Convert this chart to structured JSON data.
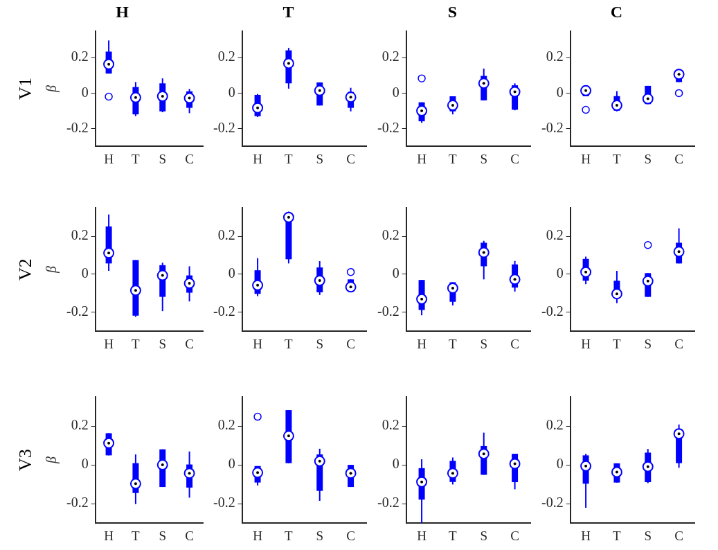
{
  "chart_data": [
    {
      "type": "box",
      "title": "H",
      "ylabel": "β",
      "annotations": [
        "V1"
      ],
      "categories": [
        "H",
        "T",
        "S",
        "C"
      ],
      "color": "#0000ff",
      "ylim": [
        -0.3,
        0.35
      ],
      "yticks": [
        -0.2,
        0,
        0.2
      ],
      "grid": false,
      "boxes": [
        {
          "low": 0.11,
          "q1": 0.11,
          "median": 0.163,
          "q3": 0.234,
          "high": 0.297,
          "outliers": [
            -0.02
          ]
        },
        {
          "low": -0.13,
          "q1": -0.12,
          "median": -0.025,
          "q3": 0.034,
          "high": 0.062
        },
        {
          "low": -0.108,
          "q1": -0.103,
          "median": -0.018,
          "q3": 0.055,
          "high": 0.083
        },
        {
          "low": -0.113,
          "q1": -0.083,
          "median": -0.028,
          "q3": 0.01,
          "high": 0.023
        }
      ]
    },
    {
      "type": "box",
      "title": "T",
      "categories": [
        "H",
        "T",
        "S",
        "C"
      ],
      "color": "#0000ff",
      "ylim": [
        -0.3,
        0.35
      ],
      "yticks": [
        -0.2,
        0,
        0.2
      ],
      "grid": false,
      "boxes": [
        {
          "low": -0.135,
          "q1": -0.13,
          "median": -0.083,
          "q3": -0.01,
          "high": -0.005
        },
        {
          "low": 0.025,
          "q1": 0.055,
          "median": 0.168,
          "q3": 0.241,
          "high": 0.255
        },
        {
          "low": -0.07,
          "q1": -0.07,
          "median": 0.014,
          "q3": 0.06,
          "high": 0.06
        },
        {
          "low": -0.103,
          "q1": -0.083,
          "median": -0.023,
          "q3": 0.007,
          "high": 0.03
        }
      ]
    },
    {
      "type": "box",
      "title": "S",
      "categories": [
        "H",
        "T",
        "S",
        "C"
      ],
      "color": "#0000ff",
      "ylim": [
        -0.3,
        0.35
      ],
      "yticks": [
        -0.2,
        0,
        0.2
      ],
      "grid": false,
      "boxes": [
        {
          "low": -0.168,
          "q1": -0.159,
          "median": -0.1,
          "q3": -0.052,
          "high": -0.052,
          "outliers": [
            0.083
          ]
        },
        {
          "low": -0.12,
          "q1": -0.103,
          "median": -0.069,
          "q3": -0.018,
          "high": -0.018
        },
        {
          "low": -0.041,
          "q1": -0.041,
          "median": 0.055,
          "q3": 0.097,
          "high": 0.138
        },
        {
          "low": -0.097,
          "q1": -0.094,
          "median": 0.007,
          "q3": 0.044,
          "high": 0.055
        }
      ]
    },
    {
      "type": "box",
      "title": "C",
      "categories": [
        "H",
        "T",
        "S",
        "C"
      ],
      "color": "#0000ff",
      "ylim": [
        -0.3,
        0.35
      ],
      "yticks": [
        -0.2,
        0,
        0.2
      ],
      "grid": false,
      "boxes": [
        {
          "low": -0.018,
          "q1": -0.018,
          "median": 0.014,
          "q3": 0.041,
          "high": 0.041,
          "outliers": [
            -0.094
          ]
        },
        {
          "low": -0.103,
          "q1": -0.099,
          "median": -0.069,
          "q3": -0.017,
          "high": 0.011
        },
        {
          "low": -0.062,
          "q1": -0.062,
          "median": -0.032,
          "q3": 0.041,
          "high": 0.041
        },
        {
          "low": 0.062,
          "q1": 0.062,
          "median": 0.106,
          "q3": 0.124,
          "high": 0.131,
          "outliers": [
            0
          ]
        }
      ]
    },
    {
      "type": "box",
      "ylabel": "β",
      "annotations": [
        "V2"
      ],
      "categories": [
        "H",
        "T",
        "S",
        "C"
      ],
      "color": "#0000ff",
      "ylim": [
        -0.3,
        0.35
      ],
      "yticks": [
        -0.2,
        0,
        0.2
      ],
      "grid": false,
      "boxes": [
        {
          "low": 0.018,
          "q1": 0.057,
          "median": 0.112,
          "q3": 0.252,
          "high": 0.315
        },
        {
          "low": -0.224,
          "q1": -0.218,
          "median": -0.085,
          "q3": 0.075,
          "high": 0.075
        },
        {
          "low": -0.194,
          "q1": -0.119,
          "median": -0.006,
          "q3": 0.048,
          "high": 0.061
        },
        {
          "low": -0.143,
          "q1": -0.097,
          "median": -0.048,
          "q3": -0.006,
          "high": 0.042
        }
      ]
    },
    {
      "type": "box",
      "categories": [
        "H",
        "T",
        "S",
        "C"
      ],
      "color": "#0000ff",
      "ylim": [
        -0.3,
        0.35
      ],
      "yticks": [
        -0.2,
        0,
        0.2
      ],
      "grid": false,
      "boxes": [
        {
          "low": -0.115,
          "q1": -0.103,
          "median": -0.058,
          "q3": 0.021,
          "high": 0.085
        },
        {
          "low": 0.057,
          "q1": 0.079,
          "median": 0.3,
          "q3": 0.31,
          "high": 0.33
        },
        {
          "low": -0.109,
          "q1": -0.095,
          "median": -0.033,
          "q3": 0.036,
          "high": 0.069
        },
        {
          "low": -0.08,
          "q1": -0.08,
          "median": -0.067,
          "q3": -0.027,
          "high": -0.027,
          "outliers": [
            0.012
          ]
        }
      ]
    },
    {
      "type": "box",
      "categories": [
        "H",
        "T",
        "S",
        "C"
      ],
      "color": "#0000ff",
      "ylim": [
        -0.3,
        0.35
      ],
      "yticks": [
        -0.2,
        0,
        0.2
      ],
      "grid": false,
      "boxes": [
        {
          "low": -0.216,
          "q1": -0.188,
          "median": -0.131,
          "q3": -0.03,
          "high": -0.03
        },
        {
          "low": -0.164,
          "q1": -0.145,
          "median": -0.073,
          "q3": -0.042,
          "high": -0.042
        },
        {
          "low": -0.027,
          "q1": 0.042,
          "median": 0.115,
          "q3": 0.166,
          "high": 0.176
        },
        {
          "low": -0.091,
          "q1": -0.07,
          "median": -0.027,
          "q3": 0.052,
          "high": 0.07
        }
      ]
    },
    {
      "type": "box",
      "categories": [
        "H",
        "T",
        "S",
        "C"
      ],
      "color": "#0000ff",
      "ylim": [
        -0.3,
        0.35
      ],
      "yticks": [
        -0.2,
        0,
        0.2
      ],
      "grid": false,
      "boxes": [
        {
          "low": -0.052,
          "q1": -0.034,
          "median": 0.012,
          "q3": 0.081,
          "high": 0.093
        },
        {
          "low": -0.152,
          "q1": -0.121,
          "median": -0.103,
          "q3": -0.034,
          "high": 0.018
        },
        {
          "low": -0.119,
          "q1": -0.119,
          "median": -0.036,
          "q3": 0.006,
          "high": 0.006,
          "outliers": [
            0.154
          ]
        },
        {
          "low": 0.057,
          "q1": 0.057,
          "median": 0.119,
          "q3": 0.166,
          "high": 0.242
        }
      ]
    },
    {
      "type": "box",
      "ylabel": "β",
      "annotations": [
        "V3"
      ],
      "categories": [
        "H",
        "T",
        "S",
        "C"
      ],
      "color": "#0000ff",
      "ylim": [
        -0.3,
        0.35
      ],
      "yticks": [
        -0.2,
        0,
        0.2
      ],
      "grid": false,
      "boxes": [
        {
          "low": 0.049,
          "q1": 0.049,
          "median": 0.112,
          "q3": 0.163,
          "high": 0.163
        },
        {
          "low": -0.202,
          "q1": -0.145,
          "median": -0.097,
          "q3": 0.009,
          "high": 0.054
        },
        {
          "low": -0.114,
          "q1": -0.114,
          "median": 0,
          "q3": 0.08,
          "high": 0.08
        },
        {
          "low": -0.169,
          "q1": -0.117,
          "median": -0.043,
          "q3": 0.002,
          "high": 0.069
        }
      ]
    },
    {
      "type": "box",
      "categories": [
        "H",
        "T",
        "S",
        "C"
      ],
      "color": "#0000ff",
      "ylim": [
        -0.3,
        0.35
      ],
      "yticks": [
        -0.2,
        0,
        0.2
      ],
      "grid": false,
      "boxes": [
        {
          "low": -0.106,
          "q1": -0.091,
          "median": -0.04,
          "q3": -0.006,
          "high": -0.006,
          "outliers": [
            0.248
          ]
        },
        {
          "low": 0.009,
          "q1": 0.009,
          "median": 0.149,
          "q3": 0.282,
          "high": 0.282
        },
        {
          "low": -0.185,
          "q1": -0.134,
          "median": 0.019,
          "q3": 0.054,
          "high": 0.083
        },
        {
          "low": -0.114,
          "q1": -0.114,
          "median": -0.043,
          "q3": 0,
          "high": 0
        }
      ]
    },
    {
      "type": "box",
      "categories": [
        "H",
        "T",
        "S",
        "C"
      ],
      "color": "#0000ff",
      "ylim": [
        -0.3,
        0.35
      ],
      "yticks": [
        -0.2,
        0,
        0.2
      ],
      "grid": false,
      "boxes": [
        {
          "low": -0.3,
          "q1": -0.179,
          "median": -0.088,
          "q3": -0.017,
          "high": 0.029
        },
        {
          "low": -0.101,
          "q1": -0.088,
          "median": -0.043,
          "q3": 0.021,
          "high": 0.038
        },
        {
          "low": -0.051,
          "q1": -0.051,
          "median": 0.057,
          "q3": 0.097,
          "high": 0.166
        },
        {
          "low": -0.126,
          "q1": -0.089,
          "median": 0.006,
          "q3": 0.057,
          "high": 0.057
        }
      ]
    },
    {
      "type": "box",
      "categories": [
        "H",
        "T",
        "S",
        "C"
      ],
      "color": "#0000ff",
      "ylim": [
        -0.3,
        0.35
      ],
      "yticks": [
        -0.2,
        0,
        0.2
      ],
      "grid": false,
      "boxes": [
        {
          "low": -0.221,
          "q1": -0.097,
          "median": -0.006,
          "q3": 0.049,
          "high": 0.057
        },
        {
          "low": -0.091,
          "q1": -0.091,
          "median": -0.037,
          "q3": 0.008,
          "high": 0.008
        },
        {
          "low": -0.094,
          "q1": -0.089,
          "median": -0.009,
          "q3": 0.063,
          "high": 0.082
        },
        {
          "low": -0.015,
          "q1": 0.009,
          "median": 0.16,
          "q3": 0.185,
          "high": 0.208
        }
      ]
    }
  ]
}
